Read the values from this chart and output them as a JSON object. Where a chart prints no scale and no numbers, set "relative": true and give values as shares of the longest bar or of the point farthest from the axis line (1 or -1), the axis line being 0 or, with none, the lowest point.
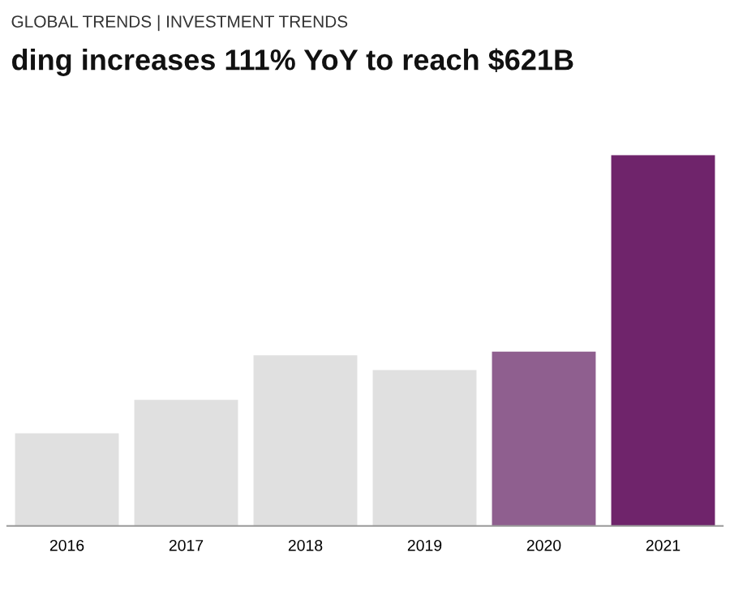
{
  "chart_data": {
    "type": "bar",
    "subtitle": "GLOBAL TRENDS | INVESTMENT TRENDS",
    "title": "ding increases 111% YoY to reach $621B",
    "relative": true,
    "categories": [
      "2016",
      "2017",
      "2018",
      "2019",
      "2020",
      "2021"
    ],
    "values": [
      0.25,
      0.34,
      0.46,
      0.42,
      0.47,
      1
    ],
    "colors": [
      "#e0e0e0",
      "#e0e0e0",
      "#e0e0e0",
      "#e0e0e0",
      "#8f5f8f",
      "#6f246b"
    ],
    "grid": false,
    "legend": false
  }
}
